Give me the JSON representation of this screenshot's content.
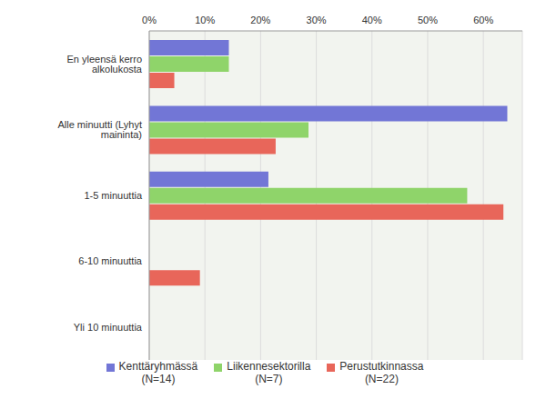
{
  "chart_data": {
    "type": "bar",
    "orientation": "horizontal",
    "categories": [
      "En yleensä kerro alkolukosta",
      "Alle minuutti (Lyhyt maininta)",
      "1-5 minuuttia",
      "6-10 minuuttia",
      "Yli 10 minuuttia"
    ],
    "series": [
      {
        "name": "Kenttäryhmässä (N=14)",
        "color": "#7276d6",
        "values": [
          14.3,
          64.3,
          21.4,
          0,
          0
        ]
      },
      {
        "name": "Liikennesektorilla (N=7)",
        "color": "#8fd46a",
        "values": [
          14.3,
          28.6,
          57.1,
          0,
          0
        ]
      },
      {
        "name": "Perustutkinnassa (N=22)",
        "color": "#e8665a",
        "values": [
          4.5,
          22.7,
          63.6,
          9.1,
          0
        ]
      }
    ],
    "xlim": [
      0,
      67
    ],
    "xticks": [
      {
        "value": 0,
        "label": "0%"
      },
      {
        "value": 10,
        "label": "10%"
      },
      {
        "value": 20,
        "label": "20%"
      },
      {
        "value": 30,
        "label": "30%"
      },
      {
        "value": 40,
        "label": "40%"
      },
      {
        "value": 50,
        "label": "50%"
      },
      {
        "value": 60,
        "label": "60%"
      }
    ],
    "grid": true,
    "legend": "bottom"
  }
}
